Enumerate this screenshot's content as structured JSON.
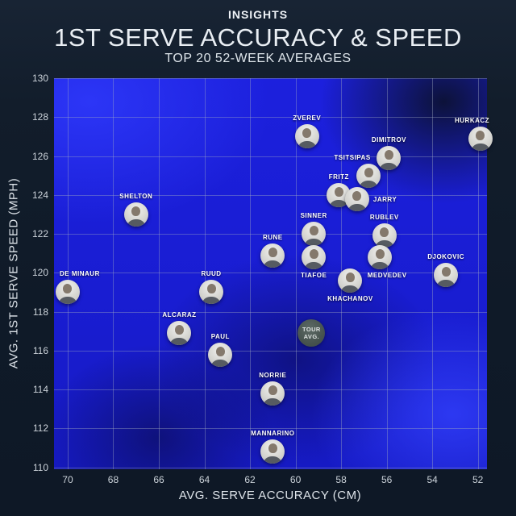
{
  "header": {
    "kicker": "INSIGHTS",
    "title": "1ST SERVE ACCURACY & SPEED",
    "subtitle": "TOP 20 52-WEEK AVERAGES"
  },
  "chart_data": {
    "type": "scatter",
    "title": "1ST SERVE ACCURACY & SPEED",
    "subtitle": "TOP 20 52-WEEK AVERAGES",
    "xlabel": "AVG. SERVE ACCURACY (CM)",
    "ylabel": "AVG. 1ST SERVE SPEED (MPH)",
    "x_ticks": [
      70,
      68,
      66,
      64,
      62,
      60,
      58,
      56,
      54,
      52
    ],
    "y_ticks": [
      130,
      128,
      126,
      124,
      122,
      120,
      118,
      116,
      114,
      112,
      110
    ],
    "x_axis_reversed": true,
    "x_range": [
      51.6,
      70.6
    ],
    "y_range": [
      109.9,
      130.0
    ],
    "grid": true,
    "legend": "none",
    "marker_style": "circular-player-photo",
    "points": [
      {
        "label": "ZVEREV",
        "accuracy_cm": 59.5,
        "speed_mph": 127.0,
        "label_pos": "above",
        "label_dx": 0
      },
      {
        "label": "HURKACZ",
        "accuracy_cm": 51.9,
        "speed_mph": 126.9,
        "label_pos": "above",
        "label_dx": -10
      },
      {
        "label": "DIMITROV",
        "accuracy_cm": 55.9,
        "speed_mph": 125.9,
        "label_pos": "above",
        "label_dx": 0
      },
      {
        "label": "TSITSIPAS",
        "accuracy_cm": 56.8,
        "speed_mph": 125.0,
        "label_pos": "above",
        "label_dx": -20
      },
      {
        "label": "FRITZ",
        "accuracy_cm": 58.1,
        "speed_mph": 124.0,
        "label_pos": "above",
        "label_dx": 0
      },
      {
        "label": "JARRY",
        "accuracy_cm": 57.3,
        "speed_mph": 123.8,
        "label_pos": "right",
        "label_dx": 0
      },
      {
        "label": "SHELTON",
        "accuracy_cm": 67.0,
        "speed_mph": 123.0,
        "label_pos": "above",
        "label_dx": 0
      },
      {
        "label": "SINNER",
        "accuracy_cm": 59.2,
        "speed_mph": 122.0,
        "label_pos": "above",
        "label_dx": 0
      },
      {
        "label": "RUBLEV",
        "accuracy_cm": 56.1,
        "speed_mph": 121.9,
        "label_pos": "above",
        "label_dx": 0
      },
      {
        "label": "RUNE",
        "accuracy_cm": 61.0,
        "speed_mph": 120.9,
        "label_pos": "above",
        "label_dx": 0
      },
      {
        "label": "TIAFOE",
        "accuracy_cm": 59.2,
        "speed_mph": 120.8,
        "label_pos": "below",
        "label_dx": 0
      },
      {
        "label": "MEDVEDEV",
        "accuracy_cm": 56.3,
        "speed_mph": 120.8,
        "label_pos": "below",
        "label_dx": 9
      },
      {
        "label": "DJOKOVIC",
        "accuracy_cm": 53.4,
        "speed_mph": 119.9,
        "label_pos": "above",
        "label_dx": 0
      },
      {
        "label": "KHACHANOV",
        "accuracy_cm": 57.6,
        "speed_mph": 119.6,
        "label_pos": "below",
        "label_dx": 0
      },
      {
        "label": "DE MINAUR",
        "accuracy_cm": 70.0,
        "speed_mph": 119.0,
        "label_pos": "above",
        "label_dx": 15
      },
      {
        "label": "RUUD",
        "accuracy_cm": 63.7,
        "speed_mph": 119.0,
        "label_pos": "above",
        "label_dx": 0
      },
      {
        "label": "ALCARAZ",
        "accuracy_cm": 65.1,
        "speed_mph": 116.9,
        "label_pos": "above",
        "label_dx": 0
      },
      {
        "label": "PAUL",
        "accuracy_cm": 63.3,
        "speed_mph": 115.8,
        "label_pos": "above",
        "label_dx": 0
      },
      {
        "label": "NORRIE",
        "accuracy_cm": 61.0,
        "speed_mph": 113.8,
        "label_pos": "above",
        "label_dx": 0
      },
      {
        "label": "MANNARINO",
        "accuracy_cm": 61.0,
        "speed_mph": 110.8,
        "label_pos": "above",
        "label_dx": 0
      }
    ],
    "tour_average": {
      "label_line1": "TOUR",
      "label_line2": "AVG.",
      "accuracy_cm": 59.3,
      "speed_mph": 116.9
    }
  },
  "colors": {
    "background": "#0f1a28",
    "plot_fill": "#1b1fd6",
    "gridline": "#a5afc3",
    "tick_text": "#ccd3da",
    "axis_title_text": "#dde3e9",
    "header_text": "#e9eef3",
    "player_label_text": "#ffffff",
    "tour_avg_fill": "#47534f"
  }
}
